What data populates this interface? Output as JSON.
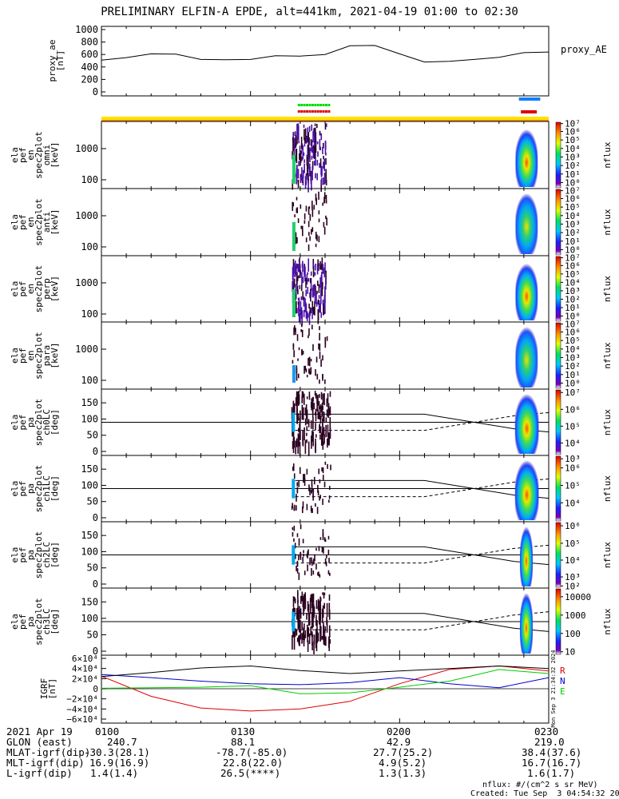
{
  "title": "PRELIMINARY ELFIN-A EPDE, alt=441km, 2021-04-19 01:00 to 02:30",
  "colors": {
    "trace": "#000000",
    "flag_yellow": "#ffe000",
    "flag_orange": "#ff9000",
    "green": "#00dd00",
    "red": "#dd0000",
    "blue": "#1080ff",
    "igrf_r": "#dd0000",
    "igrf_n": "#0000cc",
    "igrf_e": "#00cc00"
  },
  "x_axis": {
    "ticks": [
      "0100",
      "0130",
      "0200",
      "0230"
    ],
    "range": [
      "01:00",
      "02:30"
    ]
  },
  "proxy_ae": {
    "ylabel": [
      "proxy_ae",
      "[nT]"
    ],
    "yticks": [
      "1000",
      "800",
      "600",
      "400",
      "200",
      "0"
    ],
    "legend": "proxy_AE"
  },
  "spectral_panels": [
    {
      "ylabel": [
        "ela",
        "pef",
        "en",
        "spec2plot",
        "omni",
        "[keV]"
      ],
      "yticks": [
        "1000",
        "100"
      ],
      "cbar_label": "nflux"
    },
    {
      "ylabel": [
        "ela",
        "pef",
        "en",
        "spec2plot",
        "anti",
        "[keV]"
      ],
      "yticks": [
        "1000",
        "100"
      ],
      "cbar_label": "nflux"
    },
    {
      "ylabel": [
        "ela",
        "pef",
        "en",
        "spec2plot",
        "perp",
        "[keV]"
      ],
      "yticks": [
        "1000",
        "100"
      ],
      "cbar_label": "nflux"
    },
    {
      "ylabel": [
        "ela",
        "pef",
        "en",
        "spec2plot",
        "para",
        "[keV]"
      ],
      "yticks": [
        "1000",
        "100"
      ],
      "cbar_label": "nflux"
    }
  ],
  "pa_panels": [
    {
      "ylabel": [
        "ela",
        "pef",
        "pa",
        "spec2plot",
        "ch0LC",
        "[deg]"
      ],
      "yticks": [
        "150",
        "100",
        "50",
        "0"
      ],
      "cbar_label": "nflux"
    },
    {
      "ylabel": [
        "ela",
        "pef",
        "pa",
        "spec2plot",
        "ch1LC",
        "[deg]"
      ],
      "yticks": [
        "150",
        "100",
        "50",
        "0"
      ],
      "cbar_label": "nflux"
    },
    {
      "ylabel": [
        "ela",
        "pef",
        "pa",
        "spec2plot",
        "ch2LC",
        "[deg]"
      ],
      "yticks": [
        "150",
        "100",
        "50",
        "0"
      ],
      "cbar_label": "nflux"
    },
    {
      "ylabel": [
        "ela",
        "pef",
        "pa",
        "spec2plot",
        "ch3LC",
        "[deg]"
      ],
      "yticks": [
        "150",
        "100",
        "50",
        "0"
      ],
      "cbar_label": "nflux"
    }
  ],
  "igrf": {
    "ylabel": [
      "IGRF",
      "[nT]"
    ],
    "legend": [
      "R",
      "N",
      "E"
    ],
    "side_text": "Mon Sep  3 21:34:32 2024"
  },
  "ephemeris": {
    "labels": [
      "2021 Apr 19",
      "GLON (east)",
      "MLAT-igrf(dip)",
      "MLT-igrf(dip)",
      "L-igrf(dip)"
    ],
    "times": [
      "0100",
      "0130",
      "0200",
      "0230"
    ],
    "rows": [
      [
        "240.7",
        "88.1",
        "42.9",
        "219.0"
      ],
      [
        "-30.3(28.1)",
        "-78.7(-85.0)",
        "27.7(25.2)",
        "38.4(37.6)"
      ],
      [
        "16.9(16.9)",
        "22.8(22.0)",
        "4.9(5.2)",
        "16.7(16.7)"
      ],
      [
        "1.4(1.4)",
        "26.5(****)",
        "1.3(1.3)",
        "1.6(1.7)"
      ]
    ]
  },
  "footer": {
    "units": "nflux: #/(cm^2 s sr MeV)",
    "created": "Created: Tue Sep  3 04:54:32 2024"
  },
  "chart_data": [
    {
      "type": "line",
      "title": "",
      "ylabel": "proxy_ae [nT]",
      "ylim": [
        0,
        1000
      ],
      "x": [
        "01:00",
        "01:05",
        "01:10",
        "01:15",
        "01:20",
        "01:25",
        "01:30",
        "01:35",
        "01:40",
        "01:45",
        "01:50",
        "01:55",
        "02:00",
        "02:05",
        "02:10",
        "02:15",
        "02:20",
        "02:25",
        "02:30"
      ],
      "series": [
        {
          "name": "proxy_AE",
          "values": [
            510,
            550,
            610,
            605,
            520,
            515,
            520,
            580,
            575,
            600,
            740,
            745,
            610,
            480,
            490,
            520,
            555,
            630,
            640
          ]
        }
      ]
    },
    {
      "type": "line",
      "title": "",
      "ylabel": "IGRF [nT]",
      "ylim": [
        -60000,
        60000
      ],
      "x": [
        "01:00",
        "01:10",
        "01:20",
        "01:30",
        "01:40",
        "01:50",
        "02:00",
        "02:10",
        "02:20",
        "02:30"
      ],
      "series": [
        {
          "name": "R",
          "values": [
            25000,
            -15000,
            -38000,
            -44000,
            -40000,
            -25000,
            10000,
            38000,
            45000,
            35000
          ]
        },
        {
          "name": "N",
          "values": [
            28000,
            22000,
            15000,
            10000,
            8000,
            12000,
            22000,
            10000,
            2000,
            22000
          ]
        },
        {
          "name": "E",
          "values": [
            1000,
            2000,
            3000,
            6000,
            -10000,
            -8000,
            3000,
            15000,
            38000,
            30000
          ]
        },
        {
          "values": [
            24000,
            32000,
            41000,
            45000,
            36000,
            30000,
            35000,
            40000,
            45000,
            40000
          ]
        }
      ]
    }
  ]
}
